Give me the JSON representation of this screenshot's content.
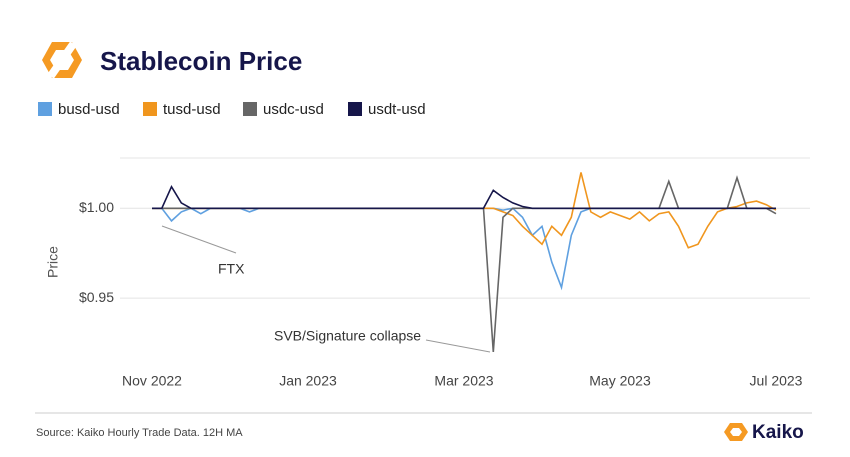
{
  "chart_data": {
    "type": "line",
    "title": "Stablecoin Price",
    "y_label": "Price",
    "source": "Source: Kaiko Hourly Trade Data. 12H MA",
    "brand": "Kaiko",
    "annotations": [
      "FTX",
      "SVB/Signature collapse"
    ],
    "categories": [
      "Nov 2022",
      null,
      null,
      null,
      null,
      null,
      null,
      null,
      null,
      null,
      null,
      null,
      null,
      null,
      null,
      null,
      "Jan 2023",
      null,
      null,
      null,
      null,
      null,
      null,
      null,
      null,
      null,
      null,
      null,
      null,
      null,
      null,
      null,
      "Mar 2023",
      null,
      null,
      null,
      null,
      null,
      null,
      null,
      null,
      null,
      null,
      null,
      null,
      null,
      null,
      null,
      "May 2023",
      null,
      null,
      null,
      null,
      null,
      null,
      null,
      null,
      null,
      null,
      null,
      null,
      null,
      null,
      null,
      "Jul 2023"
    ],
    "series": [
      {
        "name": "busd-usd",
        "color": "#5fa0e0",
        "values": [
          1,
          1,
          0.993,
          0.998,
          1,
          0.997,
          1,
          1,
          1,
          1,
          0.998,
          1,
          1,
          1,
          1,
          1,
          1,
          1,
          1,
          1,
          1,
          1,
          1,
          1,
          1,
          1,
          1,
          1,
          1,
          1,
          1,
          1,
          1,
          1,
          1,
          1,
          0.999,
          1,
          0.995,
          0.985,
          0.99,
          0.97,
          0.956,
          0.985,
          0.998,
          1,
          1,
          1,
          1,
          1,
          1,
          1,
          1,
          1,
          1,
          1,
          1,
          1,
          1,
          1,
          1,
          1,
          1,
          1,
          1
        ]
      },
      {
        "name": "tusd-usd",
        "color": "#f0961e",
        "values": [
          1,
          1,
          1,
          1,
          1,
          1,
          1,
          1,
          1,
          1,
          1,
          1,
          1,
          1,
          1,
          1,
          1,
          1,
          1,
          1,
          1,
          1,
          1,
          1,
          1,
          1,
          1,
          1,
          1,
          1,
          1,
          1,
          1,
          1,
          1,
          1,
          0.998,
          0.996,
          0.99,
          0.985,
          0.98,
          0.99,
          0.985,
          0.995,
          1.02,
          0.998,
          0.995,
          0.998,
          0.996,
          0.994,
          0.998,
          0.993,
          0.997,
          0.998,
          0.99,
          0.978,
          0.98,
          0.99,
          0.998,
          1,
          1.001,
          1.003,
          1.004,
          1.002,
          0.999
        ]
      },
      {
        "name": "usdc-usd",
        "color": "#666666",
        "values": [
          1,
          1,
          1,
          1,
          1,
          1,
          1,
          1,
          1,
          1,
          1,
          1,
          1,
          1,
          1,
          1,
          1,
          1,
          1,
          1,
          1,
          1,
          1,
          1,
          1,
          1,
          1,
          1,
          1,
          1,
          1,
          1,
          1,
          1,
          1,
          0.92,
          0.995,
          1,
          1,
          1,
          1,
          1,
          1,
          1,
          1,
          1,
          1,
          1,
          1,
          1,
          1,
          1,
          1,
          1.015,
          1,
          1,
          1,
          1,
          1,
          1,
          1.017,
          1,
          1,
          1,
          0.997
        ]
      },
      {
        "name": "usdt-usd",
        "color": "#16164a",
        "values": [
          1,
          1,
          1.012,
          1.003,
          1,
          1,
          1,
          1,
          1,
          1,
          1,
          1,
          1,
          1,
          1,
          1,
          1,
          1,
          1,
          1,
          1,
          1,
          1,
          1,
          1,
          1,
          1,
          1,
          1,
          1,
          1,
          1,
          1,
          1,
          1,
          1.01,
          1.006,
          1.003,
          1.001,
          1,
          1,
          1,
          1,
          1,
          1,
          1,
          1,
          1,
          1,
          1,
          1,
          1,
          1,
          1,
          1,
          1,
          1,
          1,
          1,
          1,
          1,
          1,
          1,
          1,
          1
        ]
      }
    ],
    "ylim": [
      0.91,
      1.028
    ],
    "yticks": [
      {
        "value": 0.95,
        "label": "$0.95"
      },
      {
        "value": 1,
        "label": "$1.00"
      }
    ],
    "grid": true
  }
}
